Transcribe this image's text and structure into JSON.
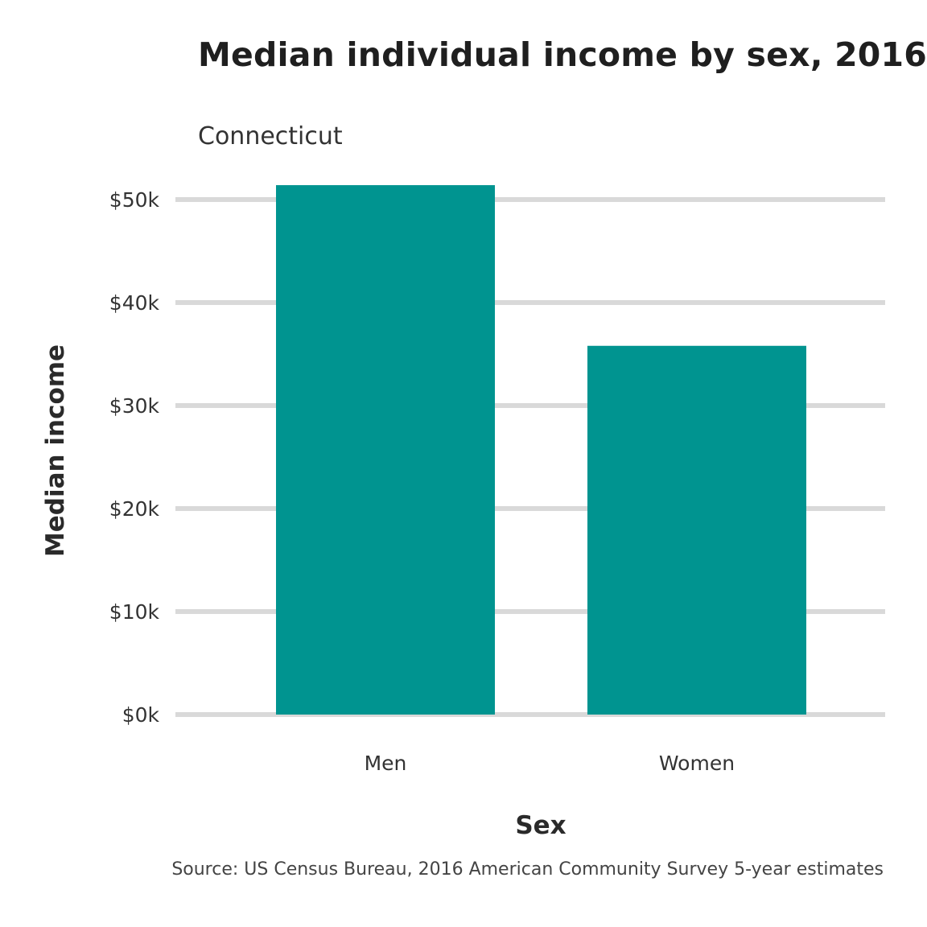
{
  "chart_data": {
    "type": "bar",
    "title": "Median individual income by sex, 2016",
    "subtitle": "Connecticut",
    "xlabel": "Sex",
    "ylabel": "Median income",
    "caption": "Source: US Census Bureau, 2016 American Community Survey 5-year estimates",
    "categories": [
      "Men",
      "Women"
    ],
    "values": [
      51400,
      35800
    ],
    "ylim": [
      0,
      50000
    ],
    "yticks": [
      0,
      10000,
      20000,
      30000,
      40000,
      50000
    ],
    "ytick_labels": [
      "$0k",
      "$10k",
      "$20k",
      "$30k",
      "$40k",
      "$50k"
    ],
    "grid": true,
    "bar_color": "#009490",
    "grid_color": "#d9d9d9"
  }
}
